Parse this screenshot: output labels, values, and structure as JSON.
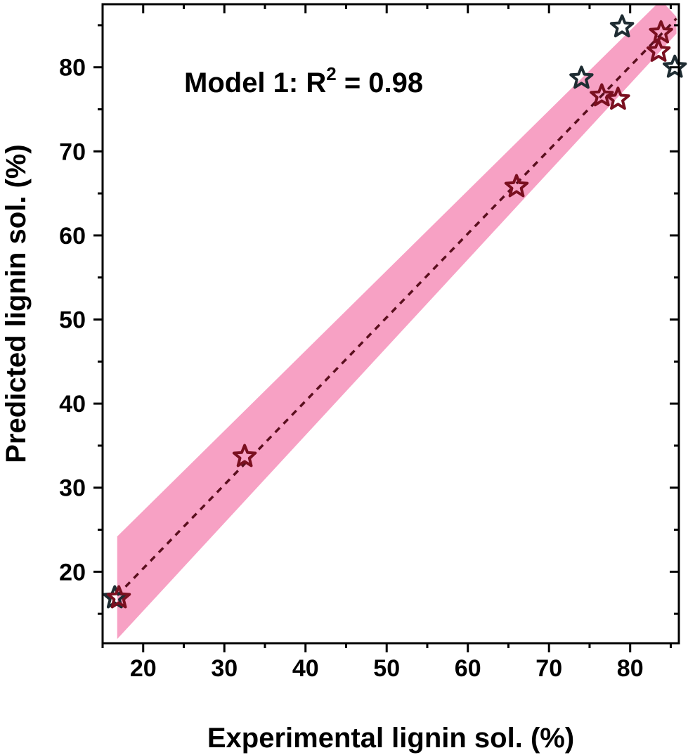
{
  "chart_data": {
    "type": "scatter",
    "annotation": {
      "prefix": "Model 1: R",
      "superscript": "2",
      "suffix": " = 0.98"
    },
    "xlabel": "Experimental lignin sol. (%)",
    "ylabel": "Predicted lignin sol. (%)",
    "xlim": [
      15,
      86
    ],
    "ylim": [
      11.5,
      87.5
    ],
    "x_ticks": [
      20,
      30,
      40,
      50,
      60,
      70,
      80
    ],
    "y_ticks": [
      20,
      30,
      40,
      50,
      60,
      70,
      80
    ],
    "grid": false,
    "fit_line": {
      "x": [
        16.8,
        85.7
      ],
      "y": [
        17.2,
        85.8
      ],
      "style": "dashed",
      "color": "#5a0f1e"
    },
    "confidence_band": {
      "color": "#f7a1c4",
      "x": [
        16.8,
        83.8,
        85.7
      ],
      "upper": [
        24.2,
        88.0,
        86.0
      ],
      "lower": [
        12.0,
        82.0,
        84.0
      ]
    },
    "series": [
      {
        "marker": "star",
        "edge_color": "#1f2d33",
        "points": [
          {
            "x": 16.5,
            "y": 16.9
          },
          {
            "x": 74.0,
            "y": 78.7
          },
          {
            "x": 79.0,
            "y": 84.8
          },
          {
            "x": 85.5,
            "y": 80.0
          }
        ]
      },
      {
        "marker": "star",
        "edge_color": "#7a1020",
        "points": [
          {
            "x": 17.0,
            "y": 16.9
          },
          {
            "x": 32.5,
            "y": 33.7
          },
          {
            "x": 66.0,
            "y": 65.8
          },
          {
            "x": 76.5,
            "y": 76.6
          },
          {
            "x": 78.5,
            "y": 76.2
          },
          {
            "x": 83.8,
            "y": 84.1
          },
          {
            "x": 83.5,
            "y": 81.9
          }
        ]
      }
    ]
  }
}
